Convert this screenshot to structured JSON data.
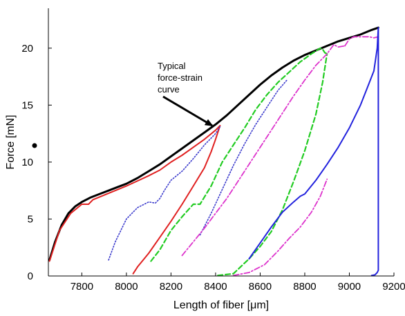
{
  "chart_data": {
    "type": "line",
    "xlabel": "Length of fiber [μm]",
    "ylabel": "Force [mN]",
    "xlim": [
      7650,
      9200
    ],
    "ylim": [
      0,
      23.5
    ],
    "xticks": [
      7800,
      8000,
      8200,
      8400,
      8600,
      8800,
      9000,
      9200
    ],
    "yticks": [
      0,
      5,
      10,
      15,
      20
    ],
    "grid": false,
    "annotation": {
      "lines": [
        "Typical",
        "force-strain",
        "curve"
      ],
      "points_to": [
        8420,
        13.1
      ]
    },
    "series": [
      {
        "color": "#000000",
        "style": "solid",
        "width": 3,
        "x": [
          7655,
          7680,
          7710,
          7740,
          7770,
          7800,
          7840,
          7880,
          7920,
          7960,
          8000,
          8050,
          8100,
          8150,
          8200,
          8250,
          8300,
          8350,
          8400,
          8450,
          8500,
          8550,
          8600,
          8650,
          8700,
          8750,
          8800,
          8850,
          8900,
          8950,
          9000,
          9050,
          9100,
          9130
        ],
        "y": [
          1.4,
          3.0,
          4.5,
          5.5,
          6.1,
          6.5,
          6.9,
          7.2,
          7.5,
          7.8,
          8.1,
          8.6,
          9.2,
          9.8,
          10.5,
          11.2,
          11.9,
          12.6,
          13.3,
          14.1,
          15.0,
          15.9,
          16.8,
          17.6,
          18.3,
          18.9,
          19.4,
          19.8,
          20.2,
          20.6,
          20.9,
          21.2,
          21.6,
          21.8
        ]
      },
      {
        "color": "#e02020",
        "style": "solid",
        "width": 2,
        "x": [
          7655,
          7700,
          7750,
          7800,
          7830,
          7850,
          7900,
          8000,
          8100,
          8150,
          8200,
          8250,
          8300,
          8350,
          8400,
          8420,
          8400,
          8380,
          8350,
          8300,
          8250,
          8200,
          8150,
          8100,
          8050,
          8030
        ],
        "y": [
          1.3,
          4.0,
          5.5,
          6.3,
          6.3,
          6.7,
          7.1,
          7.9,
          8.8,
          9.3,
          10.0,
          10.6,
          11.3,
          12.0,
          12.8,
          13.2,
          12.0,
          10.9,
          9.5,
          7.9,
          6.3,
          4.8,
          3.4,
          2.0,
          0.8,
          0.2
        ]
      },
      {
        "color": "#3a3acc",
        "style": "dotted",
        "width": 1.6,
        "x": [
          7920,
          7950,
          8000,
          8050,
          8100,
          8130,
          8150,
          8170,
          8200,
          8250,
          8300,
          8350,
          8400,
          8420
        ],
        "y": [
          1.4,
          3.0,
          5.0,
          6.0,
          6.5,
          6.4,
          6.8,
          7.5,
          8.4,
          9.2,
          10.3,
          11.5,
          12.5,
          13.1
        ]
      },
      {
        "color": "#3a3acc",
        "style": "dotted",
        "width": 1.6,
        "x": [
          8330,
          8380,
          8430,
          8480,
          8530,
          8580,
          8630,
          8680,
          8720
        ],
        "y": [
          3.6,
          5.5,
          7.6,
          9.7,
          11.6,
          13.3,
          14.8,
          16.3,
          17.2
        ]
      },
      {
        "color": "#22cc22",
        "style": "dashed",
        "width": 2.2,
        "x": [
          8110,
          8150,
          8200,
          8250,
          8300,
          8330,
          8380,
          8430,
          8480,
          8530,
          8580,
          8630,
          8680,
          8730,
          8780,
          8830,
          8870,
          8880,
          8890,
          8900
        ],
        "y": [
          1.3,
          2.3,
          4.0,
          5.2,
          6.3,
          6.3,
          7.9,
          10.0,
          11.5,
          13.0,
          14.6,
          15.9,
          17.0,
          17.9,
          18.8,
          19.5,
          20.0,
          19.9,
          19.6,
          19.5
        ]
      },
      {
        "color": "#22cc22",
        "style": "dashed",
        "width": 2.2,
        "x": [
          8410,
          8480,
          8550,
          8600,
          8650,
          8700,
          8750,
          8800,
          8850,
          8880,
          8900
        ],
        "y": [
          0.05,
          0.2,
          1.5,
          2.6,
          3.9,
          5.8,
          8.3,
          11.0,
          14.2,
          17.0,
          19.5
        ]
      },
      {
        "color": "#dd33cc",
        "style": "dashdot",
        "width": 1.8,
        "x": [
          8250,
          8300,
          8350,
          8400,
          8450,
          8500,
          8550,
          8600,
          8650,
          8700,
          8750,
          8800,
          8850,
          8900,
          8930,
          8950,
          8980
        ],
        "y": [
          1.8,
          3.0,
          4.2,
          5.5,
          6.8,
          8.3,
          9.8,
          11.3,
          12.8,
          14.3,
          15.8,
          17.2,
          18.5,
          19.5,
          20.3,
          20.1,
          20.2
        ]
      },
      {
        "color": "#dd33cc",
        "style": "dashdot",
        "width": 1.8,
        "x": [
          8480,
          8550,
          8620,
          8680,
          8730,
          8780,
          8830,
          8870,
          8900
        ],
        "y": [
          0.05,
          0.3,
          1.0,
          2.2,
          3.3,
          4.3,
          5.6,
          7.0,
          8.5
        ]
      },
      {
        "color": "#dd33cc",
        "style": "dashdot",
        "width": 1.8,
        "x": [
          8980,
          9000,
          9020,
          9040,
          9060,
          9090,
          9110,
          9130
        ],
        "y": [
          20.2,
          20.8,
          21.0,
          21.0,
          21.0,
          21.0,
          20.9,
          21.0
        ]
      },
      {
        "color": "#2222dd",
        "style": "solid",
        "width": 2,
        "x": [
          8550,
          8600,
          8650,
          8700,
          8750,
          8780,
          8800,
          8850,
          8900,
          8950,
          9000,
          9050,
          9080,
          9110,
          9125,
          9130,
          9130,
          9130,
          9125,
          9115,
          9100
        ],
        "y": [
          1.5,
          2.9,
          4.3,
          5.6,
          6.5,
          7.0,
          7.2,
          8.4,
          9.8,
          11.3,
          13.0,
          15.0,
          16.5,
          18.0,
          20.0,
          21.8,
          16.3,
          0.5,
          0.3,
          0.1,
          0.05
        ]
      }
    ]
  },
  "axes_text": {
    "xlabel": "Length of fiber [μm]",
    "ylabel": "Force [mN]",
    "annot_line1": "Typical",
    "annot_line2": "force-strain",
    "annot_line3": "curve"
  }
}
